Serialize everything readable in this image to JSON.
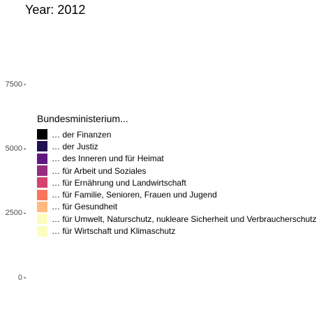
{
  "chart_data": {
    "type": "bar",
    "title": "Year: 2012",
    "y_ticks": [
      "7500",
      "5000",
      "2500",
      "0"
    ],
    "y_tick_values": [
      7500,
      5000,
      2500,
      0
    ],
    "ylim": [
      0,
      7500
    ],
    "grid": false,
    "legend": {
      "title": "Bundesministerium...",
      "placement": "left",
      "entries": [
        {
          "label": "… der Finanzen",
          "color": "#000004"
        },
        {
          "label": "… der Justiz",
          "color": "#221150"
        },
        {
          "label": "… des Inneren und für Heimat",
          "color": "#5F187F"
        },
        {
          "label": "… für Arbeit und Soziales",
          "color": "#982D80"
        },
        {
          "label": "… für Ernährung und Landwirtschaft",
          "color": "#D3436E"
        },
        {
          "label": "… für Familie, Senioren, Frauen und Jugend",
          "color": "#F8765C"
        },
        {
          "label": "… für Gesundheit",
          "color": "#FEBA80"
        },
        {
          "label": "… für Umwelt, Naturschutz, nukleare Sicherheit und Verbraucherschutz",
          "color": "#FCFDBF"
        },
        {
          "label": "… für Wirtschaft und Klimaschutz",
          "color": "#FCFDBF"
        }
      ]
    },
    "series": []
  }
}
